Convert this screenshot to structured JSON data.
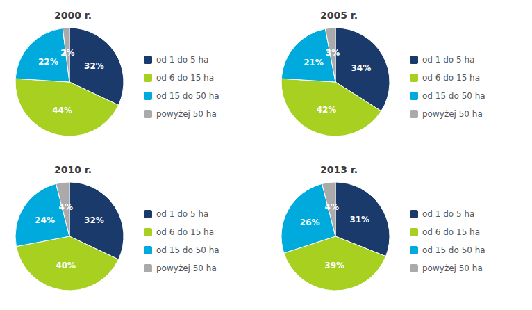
{
  "chart_data": [
    {
      "type": "pie",
      "title": "2000 r.",
      "categories": [
        "od 1 do 5 ha",
        "od 6 do 15 ha",
        "od 15 do 50 ha",
        "powyżej 50 ha"
      ],
      "values": [
        32,
        44,
        22,
        2
      ],
      "value_labels": [
        "32%",
        "44%",
        "22%",
        "2%"
      ],
      "colors": [
        "#1a3a6b",
        "#a8d020",
        "#00aadd",
        "#aaaaaa"
      ],
      "data_labels": true,
      "legend": "right"
    },
    {
      "type": "pie",
      "title": "2005 r.",
      "categories": [
        "od 1 do 5 ha",
        "od 6 do 15 ha",
        "od 15 do 50 ha",
        "powyżej 50 ha"
      ],
      "values": [
        34,
        42,
        21,
        3
      ],
      "value_labels": [
        "34%",
        "42%",
        "21%",
        "3%"
      ],
      "colors": [
        "#1a3a6b",
        "#a8d020",
        "#00aadd",
        "#aaaaaa"
      ],
      "data_labels": true,
      "legend": "right"
    },
    {
      "type": "pie",
      "title": "2010 r.",
      "categories": [
        "od 1 do 5 ha",
        "od 6 do 15 ha",
        "od 15 do 50 ha",
        "powyżej 50 ha"
      ],
      "values": [
        32,
        40,
        24,
        4
      ],
      "value_labels": [
        "32%",
        "40%",
        "24%",
        "4%"
      ],
      "colors": [
        "#1a3a6b",
        "#a8d020",
        "#00aadd",
        "#aaaaaa"
      ],
      "data_labels": true,
      "legend": "right"
    },
    {
      "type": "pie",
      "title": "2013 r.",
      "categories": [
        "od 1 do 5 ha",
        "od 6 do 15 ha",
        "od 15 do 50 ha",
        "powyżej 50 ha"
      ],
      "values": [
        31,
        39,
        26,
        4
      ],
      "value_labels": [
        "31%",
        "39%",
        "26%",
        "4%"
      ],
      "colors": [
        "#1a3a6b",
        "#a8d020",
        "#00aadd",
        "#aaaaaa"
      ],
      "data_labels": true,
      "legend": "right"
    }
  ]
}
